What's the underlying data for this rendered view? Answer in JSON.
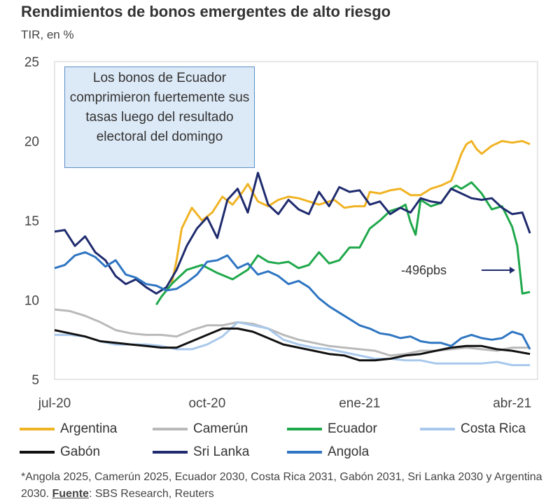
{
  "title": "Rendimientos de bonos emergentes de alto riesgo",
  "subtitle": "TIR, en %",
  "annotation": "Los bonos de Ecuador comprimieron fuertemente sus tasas luego del resultado electoral del domingo",
  "callout": "-496pbs",
  "footnote": {
    "text": "*Angola 2025, Camerún 2025, Ecuador 2030, Costa Rica 2031, Gabón 2031, Sri Lanka 2030 y Argentina 2030.",
    "source_label": "Fuente",
    "source_text": ": SBS Research, Reuters"
  },
  "chart_data": {
    "type": "line",
    "title": "Rendimientos de bonos emergentes de alto riesgo",
    "ylabel": "TIR, en %",
    "ylim": [
      5,
      25
    ],
    "yticks": [
      5,
      10,
      15,
      20,
      25
    ],
    "xlim": [
      0,
      9.5
    ],
    "xticks": [
      {
        "x": 0,
        "label": "jul-20"
      },
      {
        "x": 3,
        "label": "oct-20"
      },
      {
        "x": 6,
        "label": "ene-21"
      },
      {
        "x": 9,
        "label": "abr-21"
      }
    ],
    "series": [
      {
        "name": "Argentina",
        "color": "#f0b323",
        "x": [
          2.3,
          2.4,
          2.5,
          2.7,
          2.9,
          3.1,
          3.3,
          3.5,
          3.7,
          3.8,
          4.0,
          4.2,
          4.4,
          4.6,
          4.8,
          5.0,
          5.2,
          5.5,
          5.7,
          5.9,
          6.1,
          6.2,
          6.4,
          6.6,
          6.8,
          7.0,
          7.2,
          7.4,
          7.6,
          7.8,
          7.9,
          8.0,
          8.1,
          8.2,
          8.3,
          8.4,
          8.6,
          8.8,
          9.0,
          9.2,
          9.35
        ],
        "y": [
          11.0,
          12.5,
          14.5,
          15.8,
          15.0,
          15.5,
          16.5,
          16.0,
          16.8,
          17.3,
          16.2,
          15.9,
          16.3,
          16.5,
          16.4,
          16.2,
          16.0,
          16.3,
          15.8,
          15.9,
          15.9,
          16.8,
          16.7,
          16.9,
          17.0,
          16.6,
          16.6,
          17.0,
          17.2,
          17.5,
          18.3,
          19.2,
          19.8,
          20.0,
          19.5,
          19.2,
          19.7,
          20.0,
          19.9,
          20.0,
          19.8
        ]
      },
      {
        "name": "Camerún",
        "color": "#b9b9b9",
        "x": [
          0,
          0.3,
          0.6,
          0.9,
          1.2,
          1.5,
          1.8,
          2.1,
          2.4,
          2.7,
          3.0,
          3.3,
          3.6,
          3.9,
          4.2,
          4.5,
          4.8,
          5.1,
          5.4,
          5.7,
          6.0,
          6.3,
          6.6,
          6.9,
          7.2,
          7.5,
          7.8,
          8.1,
          8.4,
          8.7,
          9.0,
          9.35
        ],
        "y": [
          9.4,
          9.3,
          9.0,
          8.6,
          8.1,
          7.9,
          7.8,
          7.8,
          7.7,
          8.1,
          8.4,
          8.4,
          8.6,
          8.5,
          8.2,
          7.8,
          7.5,
          7.3,
          7.1,
          7.0,
          6.9,
          6.8,
          6.5,
          6.6,
          6.8,
          6.8,
          6.9,
          7.0,
          6.9,
          6.8,
          7.0,
          7.0
        ]
      },
      {
        "name": "Ecuador",
        "color": "#1fa84b",
        "x": [
          2.0,
          2.1,
          2.3,
          2.6,
          2.9,
          3.2,
          3.5,
          3.8,
          4.0,
          4.2,
          4.4,
          4.6,
          4.8,
          5.0,
          5.2,
          5.4,
          5.6,
          5.8,
          6.0,
          6.2,
          6.4,
          6.6,
          6.8,
          6.9,
          7.0,
          7.1,
          7.2,
          7.4,
          7.6,
          7.8,
          7.9,
          8.0,
          8.2,
          8.4,
          8.6,
          8.8,
          9.0,
          9.1,
          9.2,
          9.35
        ],
        "y": [
          9.7,
          10.2,
          11.0,
          11.9,
          12.2,
          11.7,
          11.3,
          11.9,
          12.8,
          12.4,
          12.3,
          12.4,
          12.0,
          12.2,
          13.0,
          12.3,
          12.5,
          13.3,
          13.3,
          14.5,
          15.0,
          15.6,
          15.8,
          16.0,
          14.9,
          14.1,
          16.3,
          15.9,
          16.1,
          17.0,
          17.2,
          17.0,
          17.4,
          16.7,
          15.7,
          15.9,
          14.6,
          13.4,
          10.4,
          10.5
        ]
      },
      {
        "name": "Costa Rica",
        "color": "#a8c8ec",
        "x": [
          0,
          0.3,
          0.6,
          0.9,
          1.2,
          1.5,
          1.8,
          2.1,
          2.4,
          2.7,
          3.0,
          3.3,
          3.6,
          3.9,
          4.2,
          4.5,
          4.8,
          5.1,
          5.4,
          5.7,
          6.0,
          6.3,
          6.6,
          6.9,
          7.2,
          7.5,
          7.8,
          8.1,
          8.4,
          8.7,
          9.0,
          9.35
        ],
        "y": [
          7.8,
          7.8,
          7.7,
          7.4,
          7.2,
          7.2,
          7.2,
          7.1,
          6.9,
          6.9,
          7.2,
          7.7,
          8.6,
          8.4,
          8.2,
          7.5,
          7.2,
          7.0,
          6.9,
          6.7,
          6.5,
          6.3,
          6.3,
          6.2,
          6.2,
          6.0,
          6.0,
          6.0,
          6.0,
          6.1,
          5.9,
          5.9
        ]
      },
      {
        "name": "Gabón",
        "color": "#111111",
        "x": [
          0,
          0.3,
          0.6,
          0.9,
          1.2,
          1.5,
          1.8,
          2.1,
          2.4,
          2.7,
          3.0,
          3.3,
          3.6,
          3.9,
          4.2,
          4.5,
          4.8,
          5.1,
          5.4,
          5.7,
          6.0,
          6.3,
          6.6,
          6.9,
          7.2,
          7.5,
          7.8,
          8.1,
          8.4,
          8.7,
          9.0,
          9.35
        ],
        "y": [
          8.1,
          7.9,
          7.7,
          7.4,
          7.3,
          7.2,
          7.1,
          7.0,
          7.0,
          7.4,
          7.8,
          8.2,
          8.2,
          8.0,
          7.6,
          7.2,
          7.0,
          6.8,
          6.6,
          6.5,
          6.2,
          6.2,
          6.3,
          6.5,
          6.6,
          6.8,
          7.0,
          7.1,
          7.1,
          6.9,
          6.8,
          6.6
        ]
      },
      {
        "name": "Sri Lanka",
        "color": "#1f2b6e",
        "x": [
          0,
          0.2,
          0.4,
          0.6,
          0.8,
          1.0,
          1.2,
          1.4,
          1.6,
          1.8,
          2.0,
          2.2,
          2.4,
          2.6,
          2.8,
          3.0,
          3.2,
          3.4,
          3.6,
          3.8,
          4.0,
          4.2,
          4.4,
          4.6,
          4.8,
          5.0,
          5.2,
          5.4,
          5.6,
          5.8,
          6.0,
          6.2,
          6.4,
          6.6,
          6.8,
          7.0,
          7.2,
          7.4,
          7.6,
          7.8,
          8.0,
          8.2,
          8.4,
          8.6,
          8.8,
          9.0,
          9.2,
          9.35
        ],
        "y": [
          14.3,
          14.4,
          13.4,
          14.0,
          13.0,
          12.5,
          11.5,
          11.0,
          11.3,
          10.8,
          10.4,
          10.8,
          11.9,
          13.4,
          14.5,
          15.2,
          13.9,
          16.3,
          17.0,
          15.5,
          18.0,
          16.0,
          15.4,
          16.3,
          15.7,
          15.4,
          16.8,
          15.9,
          17.1,
          16.8,
          16.9,
          16.0,
          16.2,
          15.4,
          15.8,
          15.5,
          16.4,
          16.2,
          16.1,
          17.0,
          16.7,
          16.4,
          16.3,
          16.4,
          15.8,
          15.4,
          15.5,
          14.2
        ]
      },
      {
        "name": "Angola",
        "color": "#2e75c2",
        "x": [
          0,
          0.2,
          0.4,
          0.6,
          0.8,
          1.0,
          1.2,
          1.4,
          1.6,
          1.8,
          2.0,
          2.2,
          2.4,
          2.6,
          2.8,
          3.0,
          3.2,
          3.4,
          3.6,
          3.8,
          4.0,
          4.2,
          4.4,
          4.6,
          4.8,
          5.0,
          5.2,
          5.4,
          5.6,
          5.8,
          6.0,
          6.2,
          6.4,
          6.6,
          6.8,
          7.0,
          7.2,
          7.4,
          7.6,
          7.8,
          8.0,
          8.2,
          8.4,
          8.6,
          8.8,
          9.0,
          9.2,
          9.35
        ],
        "y": [
          12.0,
          12.2,
          12.8,
          13.0,
          12.7,
          12.1,
          12.5,
          11.6,
          11.4,
          11.0,
          10.9,
          10.6,
          10.7,
          11.1,
          11.6,
          12.4,
          12.5,
          12.8,
          12.0,
          12.3,
          11.6,
          11.8,
          11.5,
          11.0,
          11.2,
          10.8,
          10.1,
          9.6,
          9.2,
          8.8,
          8.4,
          8.2,
          7.9,
          7.8,
          7.6,
          7.7,
          7.4,
          7.3,
          7.3,
          7.1,
          7.6,
          7.8,
          7.6,
          7.5,
          7.6,
          8.0,
          7.8,
          6.9
        ]
      }
    ]
  }
}
